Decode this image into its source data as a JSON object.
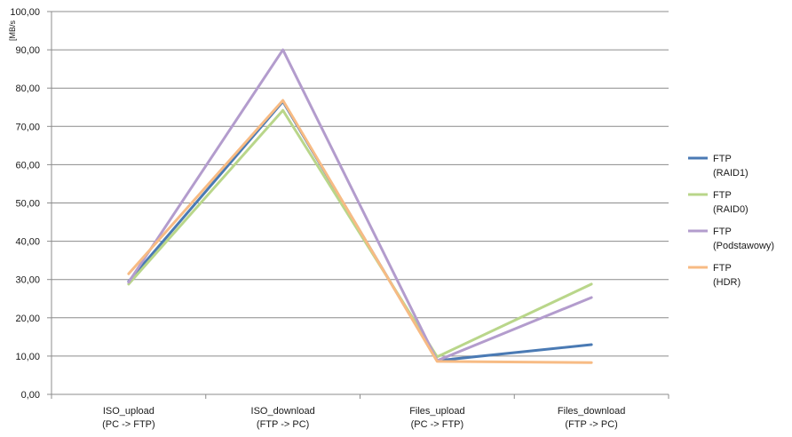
{
  "chart_data": {
    "type": "line",
    "title": "",
    "xlabel": "",
    "ylabel": "[MB/s",
    "ylim": [
      0,
      100
    ],
    "y_ticks": [
      0,
      10,
      20,
      30,
      40,
      50,
      60,
      70,
      80,
      90,
      100
    ],
    "y_tick_labels": [
      "0,00",
      "10,00",
      "20,00",
      "30,00",
      "40,00",
      "50,00",
      "60,00",
      "70,00",
      "80,00",
      "90,00",
      "100,00"
    ],
    "grid": "horizontal",
    "legend_position": "right",
    "categories": [
      [
        "ISO_upload",
        "(PC -> FTP)"
      ],
      [
        "ISO_download",
        "(FTP -> PC)"
      ],
      [
        "Files_upload",
        "(PC -> FTP)"
      ],
      [
        "Files_download",
        "(FTP -> PC)"
      ]
    ],
    "series": [
      {
        "name": [
          "FTP",
          "(RAID1)"
        ],
        "color": "#4a7ab4",
        "values": [
          29.5,
          76.5,
          8.8,
          13.0
        ]
      },
      {
        "name": [
          "FTP",
          "(RAID0)"
        ],
        "color": "#b9d68a",
        "values": [
          28.8,
          74.2,
          9.8,
          28.8
        ]
      },
      {
        "name": [
          "FTP",
          "(Podstawowy)"
        ],
        "color": "#b39ccd",
        "values": [
          29.3,
          90.0,
          8.8,
          25.3
        ]
      },
      {
        "name": [
          "FTP",
          "(HDR)"
        ],
        "color": "#f7bb84",
        "values": [
          31.5,
          76.8,
          8.6,
          8.3
        ]
      }
    ]
  }
}
